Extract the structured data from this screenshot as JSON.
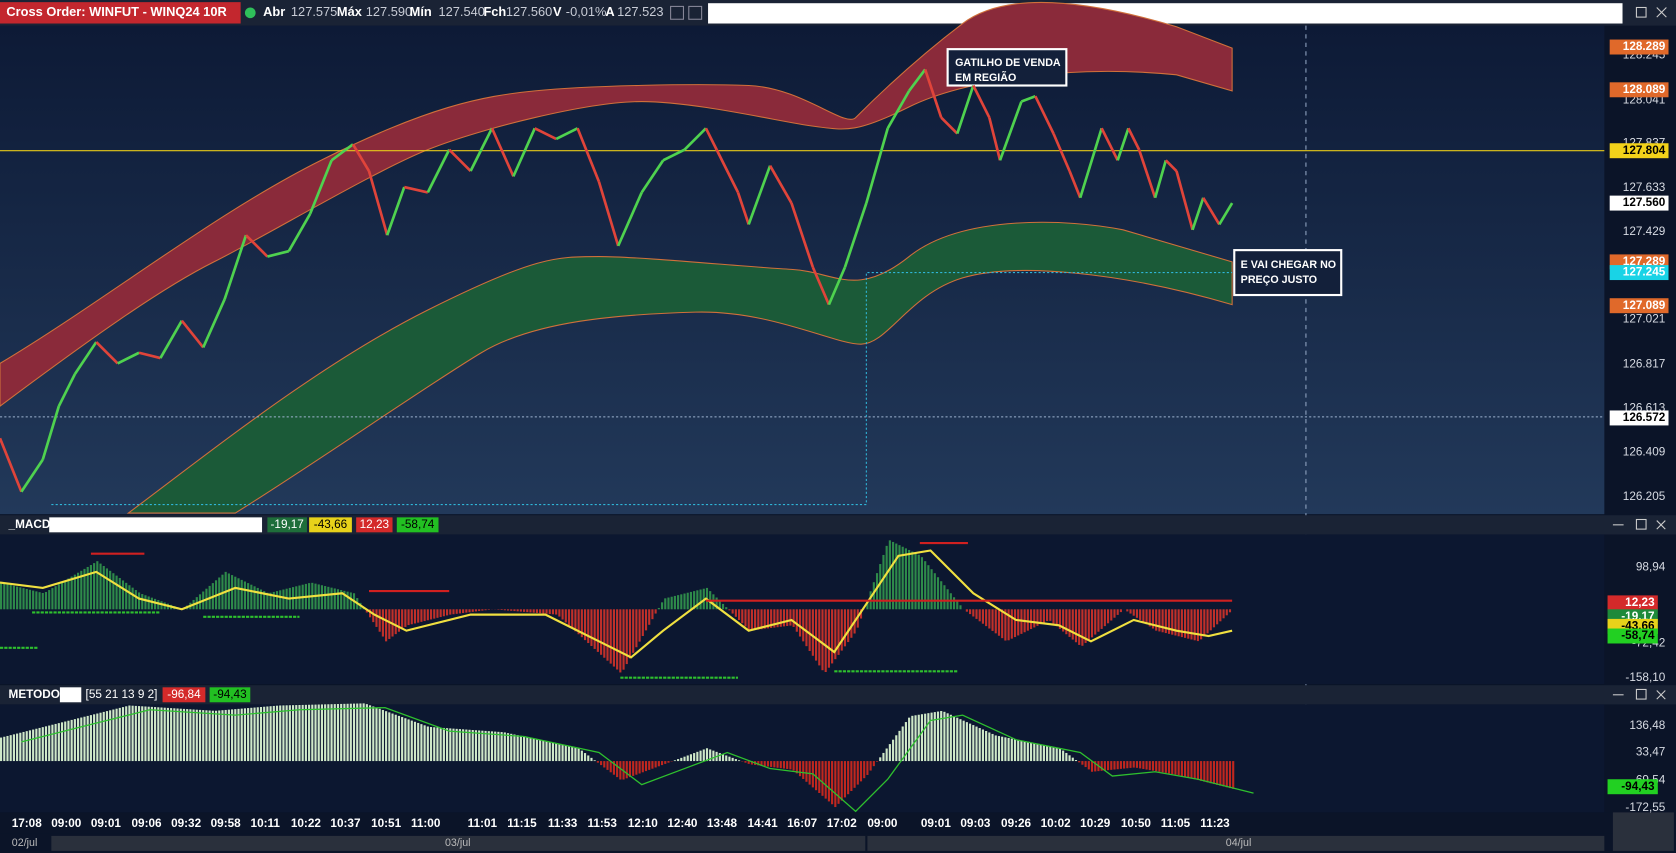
{
  "header": {
    "title": "Cross Order: WINFUT - WINQ24 10R",
    "quote": [
      {
        "label": "Abr",
        "value": "127.575"
      },
      {
        "label": "Máx",
        "value": "127.590"
      },
      {
        "label": "Mín",
        "value": "127.540"
      },
      {
        "label": "Fch",
        "value": "127.560"
      },
      {
        "label": "V",
        "value": "-0,01%"
      },
      {
        "label": "A",
        "value": "127.523"
      }
    ]
  },
  "price_axis": {
    "labels": [
      "128.245",
      "128.041",
      "127.837",
      "127.633",
      "127.429",
      "127.021",
      "126.817",
      "126.613",
      "126.409",
      "126.205"
    ],
    "tags": [
      "128.289",
      "128.089",
      "127.804",
      "127.560",
      "127.289",
      "127.245",
      "127.089",
      "126.572"
    ]
  },
  "annotations": [
    {
      "lines": [
        "GATILHO DE VENDA",
        "EM REGIÃO"
      ]
    },
    {
      "lines": [
        "E VAI CHEGAR NO",
        "PREÇO JUSTO"
      ]
    }
  ],
  "macd": {
    "name": "_MACD",
    "values": [
      "-19,17",
      "-43,66",
      "12,23",
      "-58,74"
    ],
    "axis": [
      "98,94",
      "-72,42",
      "-158,10"
    ],
    "tags": [
      "12,23",
      "-19,17",
      "-43,66",
      "-58,74"
    ]
  },
  "metodo": {
    "name": "METODO",
    "params": "[55 21 13 9 2]",
    "values": [
      "-96,84",
      "-94,43"
    ],
    "axis": [
      "136,48",
      "33,47",
      "-69,54",
      "-172,55"
    ],
    "tags": [
      "-94,43"
    ]
  },
  "time_axis": [
    "17:08",
    "09:00",
    "09:01",
    "09:06",
    "09:32",
    "09:58",
    "10:11",
    "10:22",
    "10:37",
    "10:51",
    "11:00",
    "11:01",
    "11:15",
    "11:33",
    "11:53",
    "12:10",
    "12:40",
    "13:48",
    "14:41",
    "16:07",
    "17:02",
    "09:00",
    "09:01",
    "09:03",
    "09:26",
    "10:02",
    "10:29",
    "10:50",
    "11:05",
    "11:23"
  ],
  "dates": [
    "02/jul",
    "03/jul",
    "04/jul"
  ]
}
